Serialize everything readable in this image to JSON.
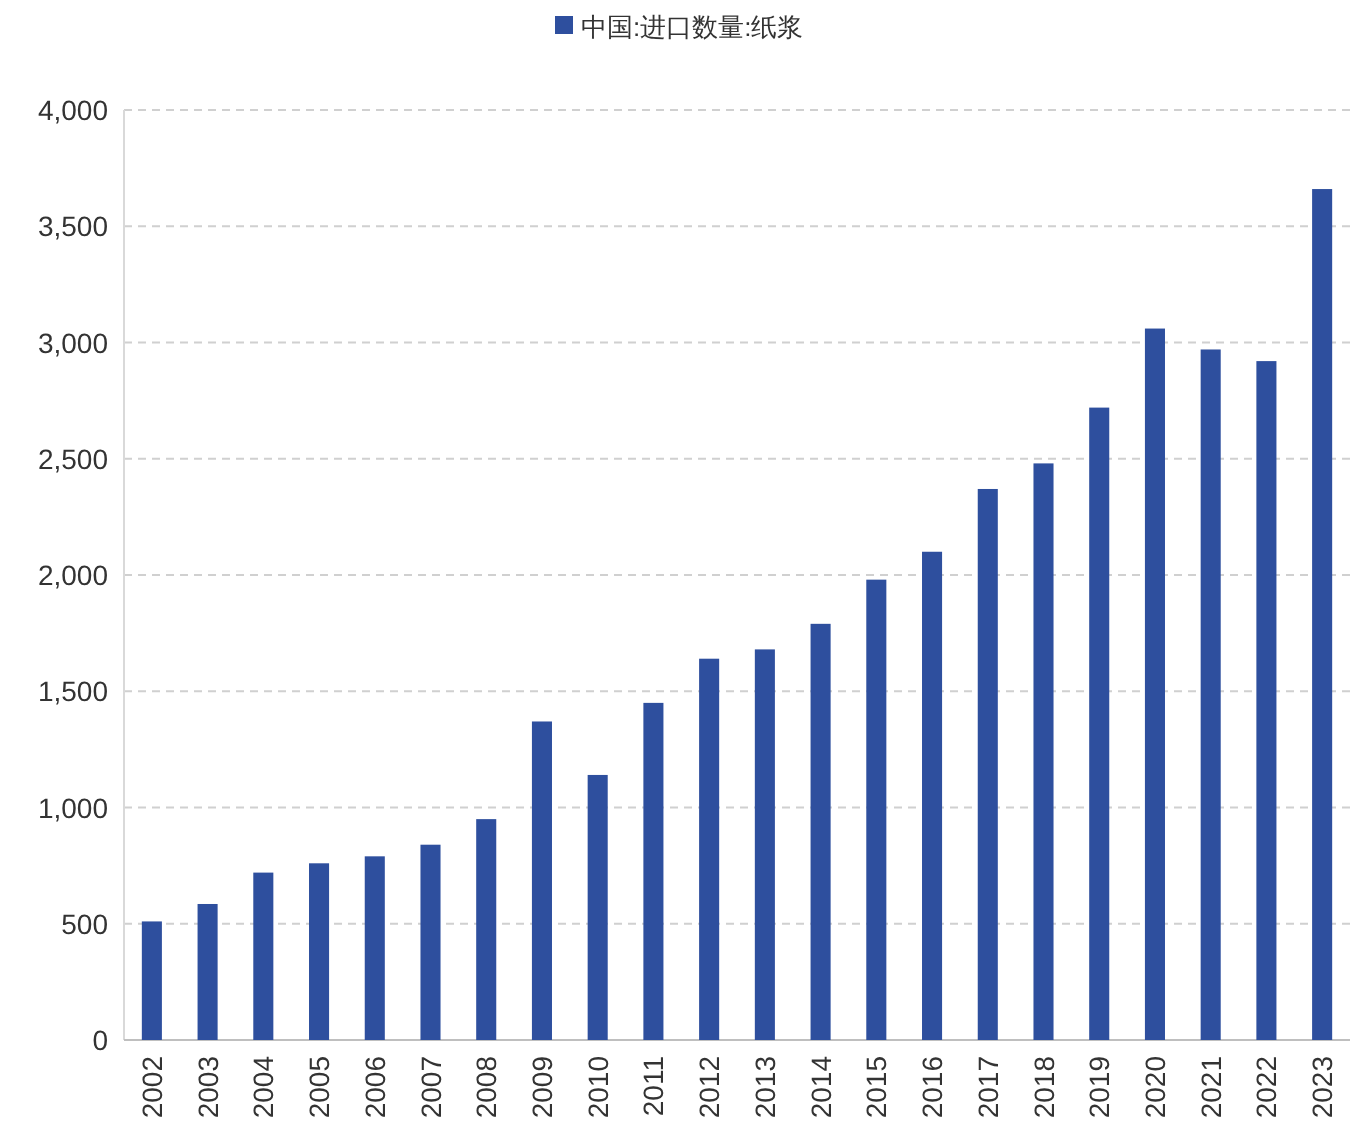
{
  "chart_data": {
    "type": "bar",
    "categories": [
      "2002",
      "2003",
      "2004",
      "2005",
      "2006",
      "2007",
      "2008",
      "2009",
      "2010",
      "2011",
      "2012",
      "2013",
      "2014",
      "2015",
      "2016",
      "2017",
      "2018",
      "2019",
      "2020",
      "2021",
      "2022",
      "2023"
    ],
    "series": [
      {
        "name": "中国:进口数量:纸浆",
        "color": "#2e4f9e",
        "values": [
          510,
          585,
          720,
          760,
          790,
          840,
          950,
          1370,
          1140,
          1450,
          1640,
          1680,
          1790,
          1980,
          2100,
          2370,
          2480,
          2720,
          3060,
          2970,
          2920,
          3660
        ]
      }
    ],
    "ylim": [
      0,
      4000
    ],
    "yticks": [
      0,
      500,
      {
        "value": 1000,
        "label": "1,000"
      },
      {
        "value": 1500,
        "label": "1,500"
      },
      {
        "value": 2000,
        "label": "2,000"
      },
      {
        "value": 2500,
        "label": "2,500"
      },
      {
        "value": 3000,
        "label": "3,000"
      },
      {
        "value": 3500,
        "label": "3,500"
      },
      {
        "value": 4000,
        "label": "4,000"
      }
    ],
    "grid": "y",
    "legend": "top"
  }
}
